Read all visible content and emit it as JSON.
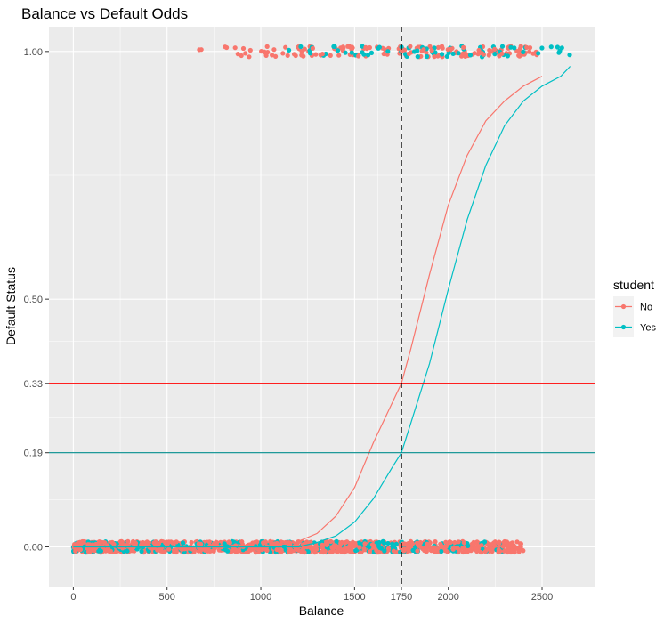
{
  "chart_data": {
    "type": "scatter",
    "title": "Balance vs Default Odds",
    "xlabel": "Balance",
    "ylabel": "Default Status",
    "xlim": [
      -130,
      2780
    ],
    "ylim": [
      -0.08,
      1.05
    ],
    "x_ticks": [
      0,
      500,
      1000,
      1500,
      1750,
      2000,
      2500
    ],
    "x_tick_labels": [
      "0",
      "500",
      "1000",
      "1500",
      "1750",
      "2000",
      "2500"
    ],
    "y_ticks": [
      0.0,
      0.19,
      0.33,
      0.5,
      1.0
    ],
    "y_tick_labels": [
      "0.00",
      "0.19",
      "0.33",
      "0.50",
      "1.00"
    ],
    "grid": true,
    "legend": {
      "title": "student",
      "position": "right",
      "entries": [
        {
          "label": "No",
          "color": "#F8766D"
        },
        {
          "label": "Yes",
          "color": "#00BFC4"
        }
      ]
    },
    "series": [
      {
        "name": "No",
        "color": "#F8766D",
        "points_default_0": {
          "x_range": [
            0,
            2400
          ],
          "y": 0.0
        },
        "points_default_1": {
          "x_range": [
            640,
            2500
          ],
          "y": 1.0
        },
        "curve": {
          "x": [
            0,
            1000,
            1100,
            1200,
            1300,
            1400,
            1500,
            1600,
            1700,
            1750,
            1800,
            1900,
            2000,
            2100,
            2200,
            2300,
            2400,
            2500
          ],
          "y": [
            0.0,
            0.0,
            0.004,
            0.011,
            0.027,
            0.062,
            0.12,
            0.21,
            0.29,
            0.33,
            0.4,
            0.55,
            0.69,
            0.79,
            0.86,
            0.9,
            0.93,
            0.95
          ]
        }
      },
      {
        "name": "Yes",
        "color": "#00BFC4",
        "points_default_0": {
          "x_range": [
            0,
            2320
          ],
          "y": 0.0
        },
        "points_default_1": {
          "x_range": [
            960,
            2650
          ],
          "y": 1.0
        },
        "curve": {
          "x": [
            0,
            1200,
            1300,
            1400,
            1500,
            1600,
            1700,
            1750,
            1800,
            1900,
            2000,
            2100,
            2200,
            2300,
            2400,
            2500,
            2600,
            2650
          ],
          "y": [
            0.0,
            0.0,
            0.009,
            0.022,
            0.05,
            0.097,
            0.16,
            0.19,
            0.25,
            0.37,
            0.52,
            0.66,
            0.77,
            0.85,
            0.9,
            0.93,
            0.95,
            0.97
          ]
        }
      }
    ],
    "reference_lines": {
      "vertical": [
        {
          "x": 1750,
          "color": "#000000",
          "style": "dashed"
        }
      ],
      "horizontal": [
        {
          "y": 0.33,
          "color": "#FF0000"
        },
        {
          "y": 0.19,
          "color": "#008B8B"
        }
      ]
    }
  }
}
